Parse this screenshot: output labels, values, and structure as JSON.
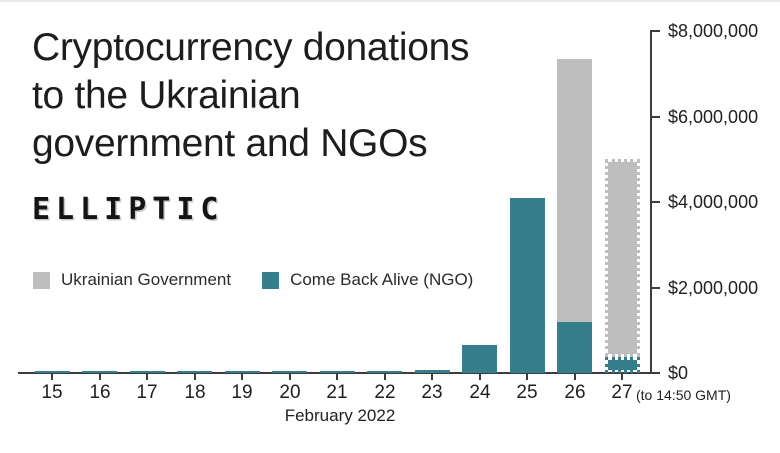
{
  "header": {
    "title_lines": [
      "Cryptocurrency donations",
      "to the Ukrainian",
      "government and NGOs"
    ],
    "logo_text": "ELLIPTIC"
  },
  "legend": {
    "items": [
      {
        "label": "Ukrainian Government",
        "color": "#bebebe"
      },
      {
        "label": "Come Back Alive (NGO)",
        "color": "#377e8d"
      }
    ]
  },
  "chart_data": {
    "type": "bar",
    "stacked": true,
    "title": "Cryptocurrency donations to the Ukrainian government and NGOs",
    "categories": [
      "15",
      "16",
      "17",
      "18",
      "19",
      "20",
      "21",
      "22",
      "23",
      "24",
      "25",
      "26",
      "27"
    ],
    "series": [
      {
        "name": "Come Back Alive (NGO)",
        "color": "#377e8d",
        "values": [
          30000,
          30000,
          35000,
          35000,
          40000,
          40000,
          45000,
          50000,
          70000,
          650000,
          4100000,
          1200000,
          370000
        ]
      },
      {
        "name": "Ukrainian Government",
        "color": "#bebebe",
        "values": [
          0,
          0,
          0,
          0,
          0,
          0,
          0,
          0,
          0,
          0,
          0,
          6150000,
          4630000
        ]
      }
    ],
    "dashed_categories": [
      "27"
    ],
    "xlabel": "February 2022",
    "x_suffix_note": "(to 14:50 GMT)",
    "y_ticks": [
      "$0",
      "$2,000,000",
      "$4,000,000",
      "$6,000,000",
      "$8,000,000"
    ],
    "y_tick_values": [
      0,
      2000000,
      4000000,
      6000000,
      8000000
    ],
    "ylim": [
      0,
      8000000
    ],
    "grid": false,
    "legend_position": "left-middle"
  }
}
